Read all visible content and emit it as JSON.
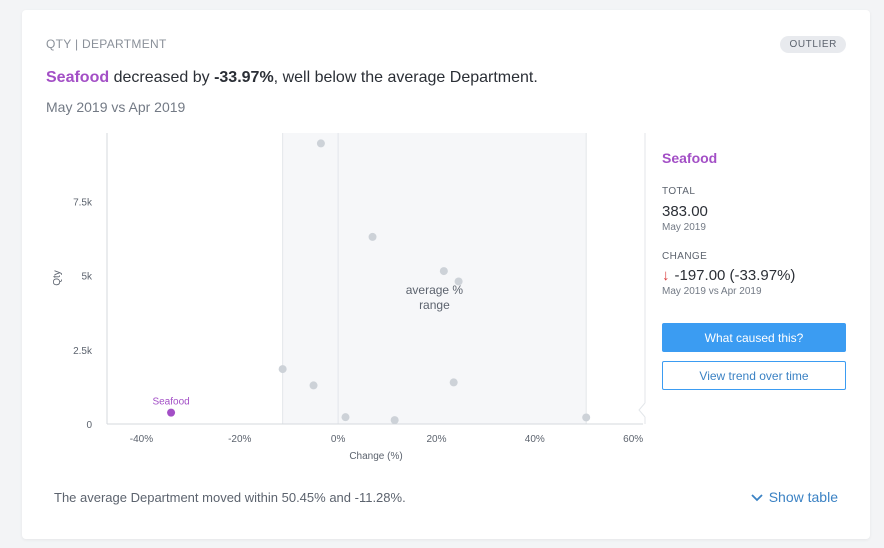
{
  "header": {
    "breadcrumb": "QTY | DEPARTMENT",
    "badge": "OUTLIER"
  },
  "headline": {
    "entity": "Seafood",
    "verb": " decreased by ",
    "percent": "-33.97%",
    "rest": ", well below the average Department."
  },
  "period": "May 2019 vs Apr 2019",
  "chart_data": {
    "type": "scatter",
    "xlabel": "Change (%)",
    "ylabel": "Qty",
    "xlim": [
      -47,
      62
    ],
    "ylim": [
      0,
      9800
    ],
    "x_ticks": [
      -40,
      -20,
      0,
      20,
      40,
      60
    ],
    "x_tick_labels": [
      "-40%",
      "-20%",
      "0%",
      "20%",
      "40%",
      "60%"
    ],
    "y_ticks": [
      0,
      2500,
      5000,
      7500
    ],
    "y_tick_labels": [
      "0",
      "2.5k",
      "5k",
      "7.5k"
    ],
    "average_range": [
      -11.28,
      50.45
    ],
    "average_range_label": [
      "average %",
      "range"
    ],
    "highlight": {
      "name": "Seafood",
      "x": -33.97,
      "y": 383,
      "color": "#a34fc6"
    },
    "points": [
      {
        "x": -3.5,
        "y": 9450
      },
      {
        "x": 7,
        "y": 6300
      },
      {
        "x": 21.5,
        "y": 5150
      },
      {
        "x": 24.5,
        "y": 4800
      },
      {
        "x": -11.28,
        "y": 1850
      },
      {
        "x": -5,
        "y": 1300
      },
      {
        "x": 23.5,
        "y": 1400
      },
      {
        "x": 1.5,
        "y": 230
      },
      {
        "x": 11.5,
        "y": 130
      },
      {
        "x": 50.45,
        "y": 220
      }
    ],
    "point_color": "#cdd2d8",
    "grid": false
  },
  "side": {
    "title": "Seafood",
    "total_label": "TOTAL",
    "total_value": "383.00",
    "total_sub": "May 2019",
    "change_label": "CHANGE",
    "change_value": "-197.00 (-33.97%)",
    "change_sub": "May 2019 vs Apr 2019",
    "btn_primary": "What caused this?",
    "btn_secondary": "View trend over time"
  },
  "footer": {
    "text": "The average Department moved within 50.45% and -11.28%.",
    "show_table": "Show table"
  }
}
